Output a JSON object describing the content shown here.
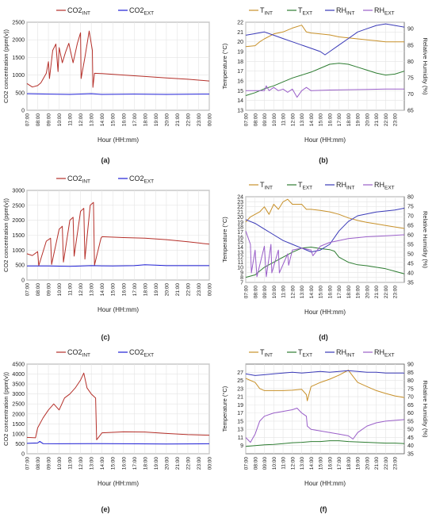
{
  "colors": {
    "co2_int": "#b5302a",
    "co2_ext": "#1f1fd6",
    "t_int": "#c8912a",
    "t_ext": "#2e7d32",
    "rh_int": "#3a3ab8",
    "rh_ext": "#9a5fc9",
    "grid": "#e4e4e4",
    "axis": "#555555"
  },
  "chart_data": [
    {
      "type": "line",
      "panel_label": "(a)",
      "xlabel": "Hour (HH:mm)",
      "ylabel": "CO2 concentration (ppm(v))",
      "x_ticks": [
        "07:00",
        "08:00",
        "09:00",
        "10:00",
        "11:00",
        "12:00",
        "13:00",
        "14:00",
        "15:00",
        "16:00",
        "17:00",
        "18:00",
        "19:00",
        "20:00",
        "21:00",
        "22:00",
        "23:00",
        "00:00"
      ],
      "xlim": [
        7,
        24
      ],
      "ylim": [
        0,
        2500
      ],
      "y_ticks": [
        0,
        500,
        1000,
        1500,
        2000,
        2500
      ],
      "legend": [
        "CO2_INT",
        "CO2_EXT"
      ],
      "series": [
        {
          "name": "CO2_INT",
          "axis": "left",
          "x": [
            7,
            7.5,
            8,
            8.3,
            8.8,
            9.0,
            9.1,
            9.4,
            9.7,
            9.9,
            10.0,
            10.3,
            10.6,
            10.9,
            11.3,
            11.7,
            12.0,
            12.05,
            12.4,
            12.8,
            13.1,
            13.15,
            13.3,
            14,
            16,
            18,
            20,
            22,
            24
          ],
          "values": [
            760,
            660,
            700,
            780,
            1050,
            1380,
            900,
            1700,
            1880,
            1100,
            1780,
            1350,
            1650,
            1900,
            1350,
            1900,
            2200,
            900,
            1500,
            2250,
            1700,
            650,
            1050,
            1040,
            1000,
            960,
            920,
            880,
            830
          ]
        },
        {
          "name": "CO2_EXT",
          "axis": "left",
          "x": [
            7,
            9,
            11,
            13,
            14,
            17,
            20,
            24
          ],
          "values": [
            470,
            460,
            450,
            470,
            450,
            460,
            450,
            460
          ]
        }
      ]
    },
    {
      "type": "line",
      "panel_label": "(b)",
      "xlabel": "Hour (HH:mm)",
      "ylabel": "Temperature (°C)",
      "y2label": "Relative Humidity (%)",
      "x_ticks": [
        "07:00",
        "08:00",
        "09:00",
        "10:00",
        "11:00",
        "12:00",
        "13:00",
        "14:00",
        "15:00",
        "16:00",
        "17:00",
        "18:00",
        "19:00",
        "20:00",
        "21:00",
        "22:00",
        "23:00"
      ],
      "xlim": [
        7,
        24
      ],
      "ylim": [
        13,
        22
      ],
      "y_ticks": [
        13,
        14,
        15,
        16,
        17,
        18,
        19,
        20,
        21,
        22
      ],
      "y2lim": [
        65,
        92
      ],
      "y2_ticks": [
        65,
        70,
        75,
        80,
        85,
        90
      ],
      "legend": [
        "T_INT",
        "T_EXT",
        "RH_INT",
        "RH_EXT"
      ],
      "series": [
        {
          "name": "T_INT",
          "axis": "left",
          "x": [
            7,
            8,
            8.5,
            9,
            10,
            11,
            12,
            13,
            13.5,
            14,
            15,
            16,
            17,
            18,
            19,
            20,
            21,
            22,
            23,
            24
          ],
          "values": [
            19.5,
            19.6,
            20.0,
            20.3,
            20.8,
            21.0,
            21.4,
            21.7,
            21.0,
            20.9,
            20.8,
            20.7,
            20.5,
            20.4,
            20.3,
            20.2,
            20.1,
            20.0,
            20.0,
            20.0
          ]
        },
        {
          "name": "T_EXT",
          "axis": "left",
          "x": [
            7,
            8,
            9,
            10,
            11,
            12,
            13,
            14,
            15,
            16,
            17,
            18,
            19,
            20,
            21,
            22,
            23,
            24
          ],
          "values": [
            14.5,
            14.8,
            15.2,
            15.5,
            15.9,
            16.3,
            16.6,
            16.9,
            17.3,
            17.7,
            17.8,
            17.7,
            17.4,
            17.1,
            16.8,
            16.6,
            16.7,
            17.0
          ]
        },
        {
          "name": "RH_INT",
          "axis": "right",
          "x": [
            7,
            8,
            9,
            10,
            11,
            12,
            13,
            14,
            15,
            15.5,
            16,
            17,
            18,
            19,
            20,
            21,
            22,
            23,
            24
          ],
          "values": [
            88,
            88.5,
            89,
            88,
            87,
            86,
            85,
            84,
            83,
            82,
            83,
            85,
            87,
            89,
            90,
            91,
            91.5,
            91,
            90.5
          ]
        },
        {
          "name": "RH_EXT",
          "axis": "right",
          "x": [
            7,
            8,
            9,
            9.2,
            9.5,
            10,
            10.5,
            11,
            11.5,
            12,
            12.5,
            13,
            13.5,
            14,
            16,
            18,
            20,
            22,
            24
          ],
          "values": [
            71,
            71,
            71,
            72.5,
            71,
            72,
            71,
            71.5,
            70.5,
            71.5,
            69,
            71,
            72,
            71,
            71.2,
            71.3,
            71.4,
            71.5,
            71.5
          ]
        }
      ]
    },
    {
      "type": "line",
      "panel_label": "(c)",
      "xlabel": "Hour (HH:mm)",
      "ylabel": "CO2 concentration (ppm(v))",
      "x_ticks": [
        "07:00",
        "08:00",
        "09:00",
        "10:00",
        "11:00",
        "12:00",
        "13:00",
        "14:00",
        "15:00",
        "16:00",
        "17:00",
        "18:00",
        "19:00",
        "20:00",
        "21:00",
        "22:00",
        "23:00",
        "00:00"
      ],
      "xlim": [
        7,
        24
      ],
      "ylim": [
        0,
        3000
      ],
      "y_ticks": [
        0,
        500,
        1000,
        1500,
        2000,
        2500,
        3000
      ],
      "legend": [
        "CO2_INT",
        "CO2_EXT"
      ],
      "series": [
        {
          "name": "CO2_INT",
          "axis": "left",
          "x": [
            7,
            7.5,
            8,
            8.1,
            8.8,
            9.2,
            9.3,
            10.0,
            10.3,
            10.4,
            11.0,
            11.3,
            11.4,
            12.0,
            12.3,
            12.4,
            12.9,
            13.2,
            13.3,
            13.9,
            14,
            16,
            18,
            20,
            22,
            24
          ],
          "values": [
            880,
            820,
            950,
            480,
            1300,
            1400,
            520,
            1700,
            1800,
            600,
            2000,
            2100,
            800,
            2300,
            2400,
            700,
            2500,
            2600,
            500,
            1400,
            1450,
            1420,
            1400,
            1350,
            1280,
            1200
          ]
        },
        {
          "name": "CO2_EXT",
          "axis": "left",
          "x": [
            7,
            9,
            11,
            13,
            15,
            17,
            18,
            19,
            20,
            24
          ],
          "values": [
            470,
            470,
            460,
            480,
            470,
            480,
            510,
            500,
            480,
            480
          ]
        }
      ]
    },
    {
      "type": "line",
      "panel_label": "(d)",
      "xlabel": "Hour (HH:mm)",
      "ylabel": "Temperature (°C)",
      "y2label": "Relative Humidity (%)",
      "x_ticks": [
        "07:00",
        "08:00",
        "09:00",
        "10:00",
        "11:00",
        "12:00",
        "13:00",
        "14:00",
        "15:00",
        "16:00",
        "17:00",
        "18:00",
        "19:00",
        "20:00",
        "21:00",
        "22:00",
        "23:00"
      ],
      "xlim": [
        7,
        24
      ],
      "ylim": [
        7,
        24
      ],
      "y_ticks": [
        7,
        8,
        9,
        10,
        11,
        12,
        13,
        14,
        15,
        16,
        17,
        18,
        19,
        20,
        21,
        22,
        23,
        24
      ],
      "y2lim": [
        35,
        80
      ],
      "y2_ticks": [
        35,
        40,
        45,
        50,
        55,
        60,
        65,
        70,
        75,
        80
      ],
      "legend": [
        "T_INT",
        "T_EXT",
        "RH_INT",
        "RH_EXT"
      ],
      "series": [
        {
          "name": "T_INT",
          "axis": "left",
          "x": [
            7,
            7.5,
            8,
            8.5,
            9,
            9.5,
            10,
            10.5,
            11,
            11.5,
            12,
            13,
            13.5,
            14,
            15,
            16,
            17,
            18,
            19,
            20,
            21,
            22,
            23,
            24
          ],
          "values": [
            19,
            20,
            20.5,
            21,
            22,
            20.5,
            22.5,
            21.5,
            23,
            23.5,
            22.5,
            22.5,
            21.5,
            21.5,
            21.3,
            21,
            20.5,
            19.8,
            19.3,
            18.9,
            18.6,
            18.3,
            18.0,
            17.7
          ]
        },
        {
          "name": "T_EXT",
          "axis": "left",
          "x": [
            7,
            8,
            9,
            10,
            11,
            12,
            13,
            14,
            15,
            16,
            16.5,
            17,
            18,
            19,
            20,
            21,
            22,
            23,
            24
          ],
          "values": [
            8.0,
            8.5,
            10,
            11,
            12,
            13,
            13.8,
            14,
            13.7,
            13.5,
            13.2,
            12,
            11,
            10.5,
            10.3,
            10,
            9.7,
            9.2,
            8.7
          ]
        },
        {
          "name": "RH_INT",
          "axis": "right",
          "x": [
            7,
            8,
            9,
            10,
            11,
            12,
            13,
            14,
            15,
            16,
            17,
            18,
            19,
            20,
            21,
            22,
            23,
            24
          ],
          "values": [
            68,
            66,
            63,
            60,
            57,
            55,
            53,
            51,
            52,
            55,
            62,
            67,
            70,
            71,
            72,
            72.5,
            73,
            74
          ]
        },
        {
          "name": "RH_EXT",
          "axis": "right",
          "x": [
            7,
            7.5,
            7.6,
            8,
            8.2,
            9,
            9.2,
            9.7,
            9.8,
            10.5,
            10.6,
            11.5,
            11.6,
            12,
            13,
            14,
            14.2,
            15,
            16,
            17,
            18,
            19,
            20,
            22,
            24
          ],
          "values": [
            62,
            55,
            40,
            52,
            38,
            54,
            38,
            55,
            40,
            52,
            40,
            50,
            44,
            52,
            53,
            52,
            49,
            54,
            56,
            57,
            58,
            58.5,
            59,
            59.5,
            60
          ]
        }
      ]
    },
    {
      "type": "line",
      "panel_label": "(e)",
      "xlabel": "Hour (HH:mm)",
      "ylabel": "CO2 concentration (ppm(v))",
      "x_ticks": [
        "07:00",
        "08:00",
        "09:00",
        "10:00",
        "11:00",
        "12:00",
        "13:00",
        "14:00",
        "15:00",
        "16:00",
        "17:00",
        "18:00",
        "19:00",
        "20:00",
        "21:00",
        "22:00",
        "23:00",
        "00:00"
      ],
      "xlim": [
        7,
        24
      ],
      "ylim": [
        0,
        4500
      ],
      "y_ticks": [
        0,
        500,
        1000,
        1500,
        2000,
        2500,
        3000,
        3500,
        4000,
        4500
      ],
      "legend": [
        "CO2_INT",
        "CO2_EXT"
      ],
      "series": [
        {
          "name": "CO2_INT",
          "axis": "left",
          "x": [
            7,
            7.8,
            8,
            8.5,
            9,
            9.5,
            10,
            10.5,
            11,
            11.5,
            12,
            12.3,
            12.6,
            13,
            13.4,
            13.5,
            14,
            16,
            18,
            20,
            22,
            24
          ],
          "values": [
            820,
            800,
            1300,
            1800,
            2200,
            2500,
            2200,
            2800,
            3000,
            3300,
            3700,
            4050,
            3300,
            3000,
            2800,
            700,
            1050,
            1100,
            1090,
            1020,
            960,
            930
          ]
        },
        {
          "name": "CO2_EXT",
          "axis": "left",
          "x": [
            7,
            8,
            8.2,
            8.5,
            10,
            13,
            16,
            20,
            24
          ],
          "values": [
            520,
            540,
            620,
            510,
            500,
            510,
            500,
            490,
            500
          ]
        }
      ]
    },
    {
      "type": "line",
      "panel_label": "(f)",
      "xlabel": "Hour (HH:mm)",
      "ylabel": "Temperature (°C)",
      "y2label": "Relative Humidity (%)",
      "x_ticks": [
        "07:00",
        "08:00",
        "09:00",
        "10:00",
        "11:00",
        "12:00",
        "13:00",
        "14:00",
        "15:00",
        "16:00",
        "17:00",
        "18:00",
        "19:00",
        "20:00",
        "21:00",
        "22:00",
        "23:00"
      ],
      "xlim": [
        7,
        24
      ],
      "ylim": [
        7,
        29
      ],
      "y_ticks": [
        9,
        11,
        13,
        15,
        17,
        19,
        21,
        23,
        25,
        27
      ],
      "y2lim": [
        35,
        90
      ],
      "y2_ticks": [
        35,
        40,
        45,
        50,
        55,
        60,
        65,
        70,
        75,
        80,
        85,
        90
      ],
      "legend": [
        "T_INT",
        "T_EXT",
        "RH_INT",
        "RH_EXT"
      ],
      "series": [
        {
          "name": "T_INT",
          "axis": "left",
          "x": [
            7,
            8,
            8.5,
            9,
            10,
            11,
            12,
            13,
            13.5,
            13.6,
            14,
            15,
            16,
            17,
            18,
            18.5,
            19,
            20,
            21,
            22,
            23,
            24
          ],
          "values": [
            25.5,
            24.5,
            23,
            22.5,
            22.5,
            22.5,
            22.6,
            22.8,
            21.5,
            20,
            23.5,
            24.5,
            25.3,
            26.3,
            27.5,
            26,
            24.5,
            23.5,
            22.5,
            21.8,
            21.2,
            20.8
          ]
        },
        {
          "name": "T_EXT",
          "axis": "left",
          "x": [
            7,
            8,
            9,
            10,
            11,
            12,
            13,
            14,
            15,
            16,
            17,
            18,
            19,
            20,
            21,
            22,
            23,
            24
          ],
          "values": [
            8.8,
            9.0,
            9.2,
            9.3,
            9.5,
            9.7,
            9.8,
            10,
            10,
            10.2,
            10.2,
            10,
            9.9,
            9.8,
            9.7,
            9.6,
            9.6,
            9.5
          ]
        },
        {
          "name": "RH_INT",
          "axis": "right",
          "x": [
            7,
            8,
            9,
            10,
            11,
            12,
            13,
            14,
            15,
            16,
            17,
            18,
            19,
            20,
            21,
            22,
            23,
            24
          ],
          "values": [
            84,
            83,
            83.5,
            84,
            84.5,
            85,
            84.5,
            85,
            85.5,
            85,
            85.5,
            86,
            85.5,
            85,
            85,
            84.5,
            84.5,
            84.5
          ]
        },
        {
          "name": "RH_EXT",
          "axis": "right",
          "x": [
            7,
            7.5,
            8,
            8.5,
            9,
            10,
            11,
            12,
            12.5,
            13,
            13.5,
            13.6,
            14,
            15,
            16,
            17,
            18,
            18.5,
            19,
            20,
            21,
            22,
            23,
            24
          ],
          "values": [
            45,
            42,
            47,
            55,
            58,
            60,
            61,
            62,
            63,
            60,
            58,
            52,
            50,
            49,
            48,
            47,
            46,
            44,
            48,
            52,
            54,
            55,
            55.5,
            56
          ]
        }
      ]
    }
  ]
}
